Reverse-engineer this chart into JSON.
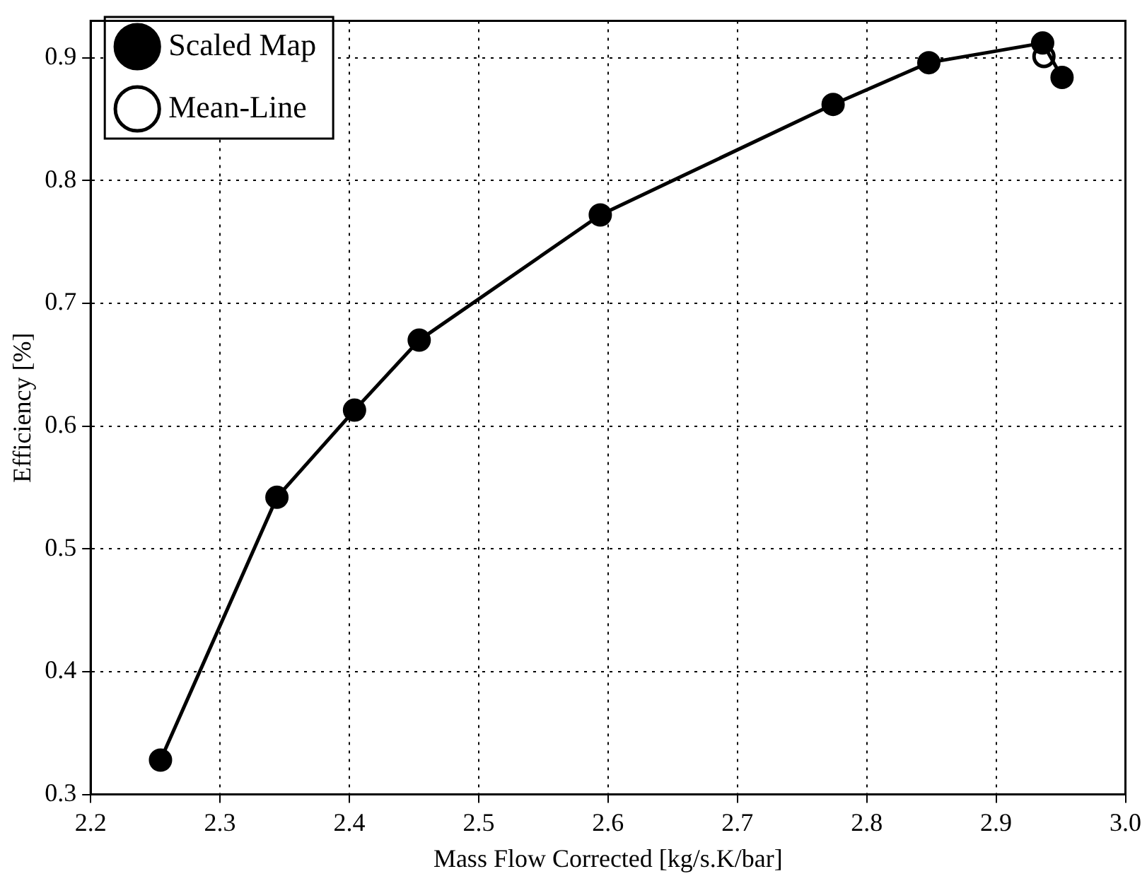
{
  "chart_data": {
    "type": "line",
    "xlabel": "Mass Flow Corrected [kg/s.K/bar]",
    "ylabel": "Efficiency [%]",
    "xlim": [
      2.2,
      3.0
    ],
    "xticks": [
      2.2,
      2.3,
      2.4,
      2.5,
      2.6,
      2.7,
      2.8,
      2.9,
      {
        "value": 3.0,
        "label": "3.0"
      }
    ],
    "ylim": [
      0.3,
      0.93
    ],
    "yticks": [
      0.3,
      0.4,
      0.5,
      0.6,
      0.7,
      0.8,
      0.9
    ],
    "grid": true,
    "legend": "top left",
    "marker": "circle",
    "line_style": "solid",
    "series": [
      {
        "name": "Scaled Map",
        "color": "#000000",
        "x": [
          2.254,
          2.344,
          2.404,
          2.454,
          2.594,
          2.774,
          2.848,
          2.936,
          2.951
        ],
        "values": [
          0.328,
          0.542,
          0.613,
          0.67,
          0.772,
          0.862,
          0.896,
          0.912,
          0.884
        ]
      },
      {
        "name": "Mean-Line",
        "color": "#000000",
        "x": [
          2.937
        ],
        "values": [
          0.901
        ]
      }
    ]
  }
}
